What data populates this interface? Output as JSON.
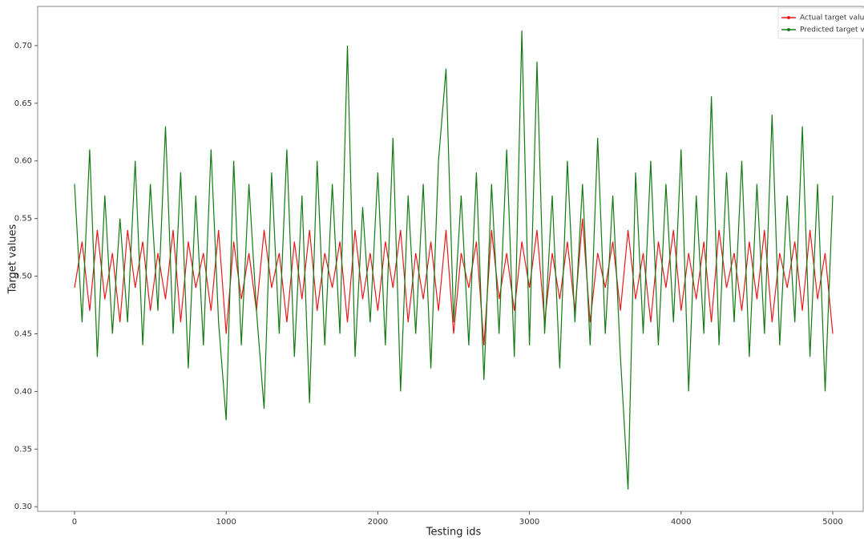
{
  "chart_data": {
    "type": "line",
    "x_label": "Testing ids",
    "y_label": "Target values",
    "x": [
      0,
      50,
      100,
      150,
      200,
      250,
      300,
      350,
      400,
      450,
      500,
      550,
      600,
      650,
      700,
      750,
      800,
      850,
      900,
      950,
      1000,
      1050,
      1100,
      1150,
      1200,
      1250,
      1300,
      1350,
      1400,
      1450,
      1500,
      1550,
      1600,
      1650,
      1700,
      1750,
      1800,
      1850,
      1900,
      1950,
      2000,
      2050,
      2100,
      2150,
      2200,
      2250,
      2300,
      2350,
      2400,
      2450,
      2500,
      2550,
      2600,
      2650,
      2700,
      2750,
      2800,
      2850,
      2900,
      2950,
      3000,
      3050,
      3100,
      3150,
      3200,
      3250,
      3300,
      3350,
      3400,
      3450,
      3500,
      3550,
      3600,
      3650,
      3700,
      3750,
      3800,
      3850,
      3900,
      3950,
      4000,
      4050,
      4100,
      4150,
      4200,
      4250,
      4300,
      4350,
      4400,
      4450,
      4500,
      4550,
      4600,
      4650,
      4700,
      4750,
      4800,
      4850,
      4900,
      4950,
      5000
    ],
    "series": [
      {
        "name": "Actual target value",
        "color": "#e8191b",
        "values": [
          0.49,
          0.53,
          0.47,
          0.54,
          0.48,
          0.52,
          0.46,
          0.54,
          0.49,
          0.53,
          0.47,
          0.52,
          0.48,
          0.54,
          0.46,
          0.53,
          0.49,
          0.52,
          0.47,
          0.54,
          0.45,
          0.53,
          0.48,
          0.52,
          0.47,
          0.54,
          0.49,
          0.52,
          0.46,
          0.53,
          0.48,
          0.54,
          0.47,
          0.52,
          0.49,
          0.53,
          0.46,
          0.54,
          0.48,
          0.52,
          0.47,
          0.53,
          0.49,
          0.54,
          0.46,
          0.52,
          0.48,
          0.53,
          0.47,
          0.54,
          0.45,
          0.52,
          0.49,
          0.53,
          0.44,
          0.54,
          0.48,
          0.52,
          0.47,
          0.53,
          0.49,
          0.54,
          0.46,
          0.52,
          0.48,
          0.53,
          0.47,
          0.55,
          0.46,
          0.52,
          0.49,
          0.53,
          0.47,
          0.54,
          0.48,
          0.52,
          0.46,
          0.53,
          0.49,
          0.54,
          0.47,
          0.52,
          0.48,
          0.53,
          0.46,
          0.54,
          0.49,
          0.52,
          0.47,
          0.53,
          0.48,
          0.54,
          0.46,
          0.52,
          0.49,
          0.53,
          0.47,
          0.54,
          0.48,
          0.52,
          0.45
        ]
      },
      {
        "name": "Predicted target value",
        "color": "#137a13",
        "values": [
          0.58,
          0.46,
          0.61,
          0.43,
          0.57,
          0.45,
          0.55,
          0.46,
          0.6,
          0.44,
          0.58,
          0.47,
          0.63,
          0.45,
          0.59,
          0.42,
          0.57,
          0.44,
          0.61,
          0.46,
          0.375,
          0.6,
          0.44,
          0.58,
          0.47,
          0.385,
          0.59,
          0.45,
          0.61,
          0.43,
          0.57,
          0.39,
          0.6,
          0.44,
          0.58,
          0.45,
          0.7,
          0.43,
          0.56,
          0.46,
          0.59,
          0.44,
          0.62,
          0.4,
          0.57,
          0.45,
          0.58,
          0.42,
          0.6,
          0.68,
          0.46,
          0.57,
          0.44,
          0.59,
          0.41,
          0.58,
          0.45,
          0.61,
          0.43,
          0.713,
          0.44,
          0.686,
          0.45,
          0.57,
          0.42,
          0.6,
          0.46,
          0.58,
          0.44,
          0.62,
          0.45,
          0.57,
          0.43,
          0.315,
          0.59,
          0.45,
          0.6,
          0.44,
          0.58,
          0.46,
          0.61,
          0.4,
          0.57,
          0.45,
          0.656,
          0.44,
          0.59,
          0.46,
          0.6,
          0.43,
          0.58,
          0.45,
          0.64,
          0.44,
          0.57,
          0.46,
          0.63,
          0.43,
          0.58,
          0.4,
          0.57
        ]
      }
    ],
    "xlim": [
      -243,
      5201
    ],
    "ylim": [
      0.296,
      0.734
    ],
    "xticks": [
      0,
      1000,
      2000,
      3000,
      4000,
      5000
    ],
    "yticks": [
      {
        "value": 0.3,
        "label": "0.30"
      },
      0.35,
      {
        "value": 0.4,
        "label": "0.40"
      },
      0.45,
      {
        "value": 0.5,
        "label": "0.50"
      },
      0.55,
      {
        "value": 0.6,
        "label": "0.60"
      },
      0.65,
      {
        "value": 0.7,
        "label": "0.70"
      }
    ],
    "grid": false,
    "legend": "upper right"
  }
}
